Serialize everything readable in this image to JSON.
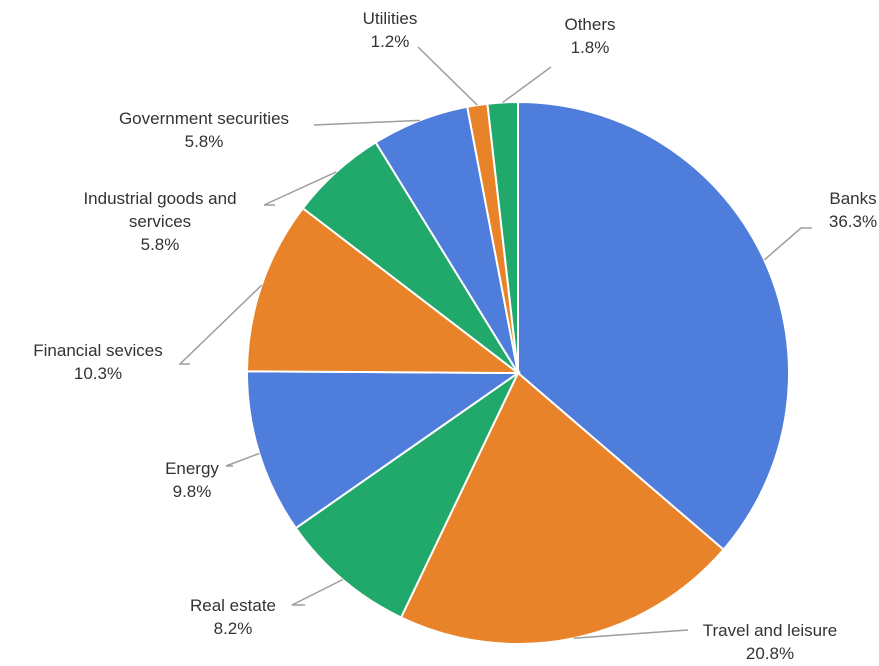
{
  "chart_data": {
    "type": "pie",
    "slices": [
      {
        "label": "Banks",
        "value": 36.3,
        "value_label": "36.3%",
        "color": "#4f7ddb"
      },
      {
        "label": "Travel and leisure",
        "value": 20.8,
        "value_label": "20.8%",
        "color": "#e8832a"
      },
      {
        "label": "Real estate",
        "value": 8.2,
        "value_label": "8.2%",
        "color": "#21a86b"
      },
      {
        "label": "Energy",
        "value": 9.8,
        "value_label": "9.8%",
        "color": "#4f7ddb"
      },
      {
        "label": "Financial sevices",
        "value": 10.3,
        "value_label": "10.3%",
        "color": "#e8832a"
      },
      {
        "label": "Industrial goods and services",
        "label_lines": [
          "Industrial goods and",
          "services"
        ],
        "value": 5.8,
        "value_label": "5.8%",
        "color": "#21a86b"
      },
      {
        "label": "Government securities",
        "value": 5.8,
        "value_label": "5.8%",
        "color": "#4f7ddb"
      },
      {
        "label": "Utilities",
        "value": 1.2,
        "value_label": "1.2%",
        "color": "#e8832a"
      },
      {
        "label": "Others",
        "value": 1.8,
        "value_label": "1.8%",
        "color": "#21a86b"
      }
    ],
    "start": "12 o'clock",
    "direction": "clockwise",
    "legend": "none"
  }
}
